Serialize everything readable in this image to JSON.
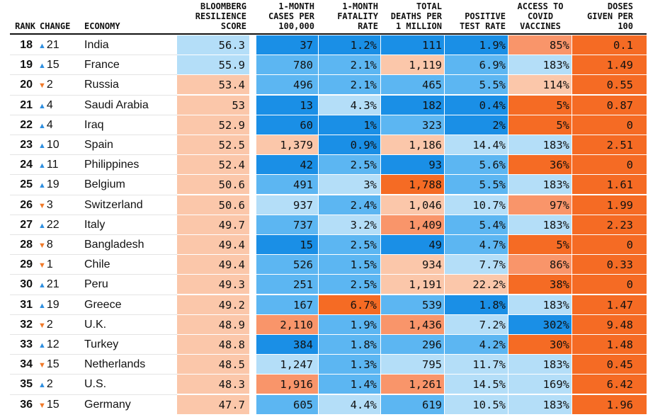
{
  "headers": {
    "rank": "RANK",
    "change": "CHANGE",
    "economy": "ECONOMY",
    "score": "BLOOMBERG\nRESILIENCE\nSCORE",
    "cases": "1-MONTH\nCASES PER\n100,000",
    "fatality": "1-MONTH\nFATALITY\nRATE",
    "deaths": "TOTAL\nDEATHS PER\n1 MILLION",
    "positive": "POSITIVE\nTEST RATE",
    "access": "ACCESS TO\nCOVID\nVACCINES",
    "doses": "DOSES\nGIVEN PER\n100"
  },
  "colors": {
    "dark_blue": "#1a8fe6",
    "mid_blue": "#5cb6f2",
    "light_blue": "#b4def8",
    "light_orange": "#fbc7aa",
    "mid_orange": "#f9956a",
    "dark_orange": "#f56b24",
    "up_arrow": "#2f8fe0",
    "down_arrow": "#f07a2a"
  },
  "rows": [
    {
      "rank": "18",
      "dir": "up",
      "change": "21",
      "economy": "India",
      "score": "56.3",
      "cases": "37",
      "fatality": "1.2%",
      "deaths": "111",
      "positive": "1.9%",
      "access": "85%",
      "doses": "0.1",
      "c": [
        "light_blue",
        "dark_blue",
        "dark_blue",
        "dark_blue",
        "dark_blue",
        "mid_orange",
        "dark_orange"
      ]
    },
    {
      "rank": "19",
      "dir": "up",
      "change": "15",
      "economy": "France",
      "score": "55.9",
      "cases": "780",
      "fatality": "2.1%",
      "deaths": "1,119",
      "positive": "6.9%",
      "access": "183%",
      "doses": "1.49",
      "c": [
        "light_blue",
        "mid_blue",
        "mid_blue",
        "light_orange",
        "mid_blue",
        "light_blue",
        "dark_orange"
      ]
    },
    {
      "rank": "20",
      "dir": "down",
      "change": "2",
      "economy": "Russia",
      "score": "53.4",
      "cases": "496",
      "fatality": "2.1%",
      "deaths": "465",
      "positive": "5.5%",
      "access": "114%",
      "doses": "0.55",
      "c": [
        "light_orange",
        "mid_blue",
        "mid_blue",
        "mid_blue",
        "mid_blue",
        "light_orange",
        "dark_orange"
      ]
    },
    {
      "rank": "21",
      "dir": "up",
      "change": "4",
      "economy": "Saudi Arabia",
      "score": "53",
      "cases": "13",
      "fatality": "4.3%",
      "deaths": "182",
      "positive": "0.4%",
      "access": "5%",
      "doses": "0.87",
      "c": [
        "light_orange",
        "dark_blue",
        "light_blue",
        "dark_blue",
        "dark_blue",
        "dark_orange",
        "dark_orange"
      ]
    },
    {
      "rank": "22",
      "dir": "up",
      "change": "4",
      "economy": "Iraq",
      "score": "52.9",
      "cases": "60",
      "fatality": "1%",
      "deaths": "323",
      "positive": "2%",
      "access": "5%",
      "doses": "0",
      "c": [
        "light_orange",
        "dark_blue",
        "dark_blue",
        "mid_blue",
        "dark_blue",
        "dark_orange",
        "dark_orange"
      ]
    },
    {
      "rank": "23",
      "dir": "up",
      "change": "10",
      "economy": "Spain",
      "score": "52.5",
      "cases": "1,379",
      "fatality": "0.9%",
      "deaths": "1,186",
      "positive": "14.4%",
      "access": "183%",
      "doses": "2.51",
      "c": [
        "light_orange",
        "light_orange",
        "dark_blue",
        "light_orange",
        "light_blue",
        "light_blue",
        "dark_orange"
      ]
    },
    {
      "rank": "24",
      "dir": "up",
      "change": "11",
      "economy": "Philippines",
      "score": "52.4",
      "cases": "42",
      "fatality": "2.5%",
      "deaths": "93",
      "positive": "5.6%",
      "access": "36%",
      "doses": "0",
      "c": [
        "light_orange",
        "dark_blue",
        "mid_blue",
        "dark_blue",
        "mid_blue",
        "dark_orange",
        "dark_orange"
      ]
    },
    {
      "rank": "25",
      "dir": "up",
      "change": "19",
      "economy": "Belgium",
      "score": "50.6",
      "cases": "491",
      "fatality": "3%",
      "deaths": "1,788",
      "positive": "5.5%",
      "access": "183%",
      "doses": "1.61",
      "c": [
        "light_orange",
        "mid_blue",
        "light_blue",
        "dark_orange",
        "mid_blue",
        "light_blue",
        "dark_orange"
      ]
    },
    {
      "rank": "26",
      "dir": "down",
      "change": "3",
      "economy": "Switzerland",
      "score": "50.6",
      "cases": "937",
      "fatality": "2.4%",
      "deaths": "1,046",
      "positive": "10.7%",
      "access": "97%",
      "doses": "1.99",
      "c": [
        "light_orange",
        "light_blue",
        "mid_blue",
        "light_orange",
        "light_blue",
        "mid_orange",
        "dark_orange"
      ]
    },
    {
      "rank": "27",
      "dir": "up",
      "change": "22",
      "economy": "Italy",
      "score": "49.7",
      "cases": "737",
      "fatality": "3.2%",
      "deaths": "1,409",
      "positive": "5.4%",
      "access": "183%",
      "doses": "2.23",
      "c": [
        "light_orange",
        "mid_blue",
        "light_blue",
        "mid_orange",
        "mid_blue",
        "light_blue",
        "dark_orange"
      ]
    },
    {
      "rank": "28",
      "dir": "down",
      "change": "8",
      "economy": "Bangladesh",
      "score": "49.4",
      "cases": "15",
      "fatality": "2.5%",
      "deaths": "49",
      "positive": "4.7%",
      "access": "5%",
      "doses": "0",
      "c": [
        "light_orange",
        "dark_blue",
        "mid_blue",
        "dark_blue",
        "mid_blue",
        "dark_orange",
        "dark_orange"
      ]
    },
    {
      "rank": "29",
      "dir": "down",
      "change": "1",
      "economy": "Chile",
      "score": "49.4",
      "cases": "526",
      "fatality": "1.5%",
      "deaths": "934",
      "positive": "7.7%",
      "access": "86%",
      "doses": "0.33",
      "c": [
        "light_orange",
        "mid_blue",
        "mid_blue",
        "light_orange",
        "light_blue",
        "mid_orange",
        "dark_orange"
      ]
    },
    {
      "rank": "30",
      "dir": "up",
      "change": "21",
      "economy": "Peru",
      "score": "49.3",
      "cases": "251",
      "fatality": "2.5%",
      "deaths": "1,191",
      "positive": "22.2%",
      "access": "38%",
      "doses": "0",
      "c": [
        "light_orange",
        "mid_blue",
        "mid_blue",
        "light_orange",
        "light_orange",
        "dark_orange",
        "dark_orange"
      ]
    },
    {
      "rank": "31",
      "dir": "up",
      "change": "19",
      "economy": "Greece",
      "score": "49.2",
      "cases": "167",
      "fatality": "6.7%",
      "deaths": "539",
      "positive": "1.8%",
      "access": "183%",
      "doses": "1.47",
      "c": [
        "light_orange",
        "mid_blue",
        "dark_orange",
        "mid_blue",
        "dark_blue",
        "light_blue",
        "dark_orange"
      ]
    },
    {
      "rank": "32",
      "dir": "down",
      "change": "2",
      "economy": "U.K.",
      "score": "48.9",
      "cases": "2,110",
      "fatality": "1.9%",
      "deaths": "1,436",
      "positive": "7.2%",
      "access": "302%",
      "doses": "9.48",
      "c": [
        "light_orange",
        "mid_orange",
        "mid_blue",
        "mid_orange",
        "light_blue",
        "dark_blue",
        "dark_orange"
      ]
    },
    {
      "rank": "33",
      "dir": "up",
      "change": "12",
      "economy": "Turkey",
      "score": "48.8",
      "cases": "384",
      "fatality": "1.8%",
      "deaths": "296",
      "positive": "4.2%",
      "access": "30%",
      "doses": "1.48",
      "c": [
        "light_orange",
        "dark_blue",
        "mid_blue",
        "mid_blue",
        "mid_blue",
        "dark_orange",
        "dark_orange"
      ]
    },
    {
      "rank": "34",
      "dir": "down",
      "change": "15",
      "economy": "Netherlands",
      "score": "48.5",
      "cases": "1,247",
      "fatality": "1.3%",
      "deaths": "795",
      "positive": "11.7%",
      "access": "183%",
      "doses": "0.45",
      "c": [
        "light_orange",
        "light_blue",
        "mid_blue",
        "light_blue",
        "light_blue",
        "light_blue",
        "dark_orange"
      ]
    },
    {
      "rank": "35",
      "dir": "up",
      "change": "2",
      "economy": "U.S.",
      "score": "48.3",
      "cases": "1,916",
      "fatality": "1.4%",
      "deaths": "1,261",
      "positive": "14.5%",
      "access": "169%",
      "doses": "6.42",
      "c": [
        "light_orange",
        "mid_orange",
        "mid_blue",
        "mid_orange",
        "light_blue",
        "light_blue",
        "dark_orange"
      ]
    },
    {
      "rank": "36",
      "dir": "down",
      "change": "15",
      "economy": "Germany",
      "score": "47.7",
      "cases": "605",
      "fatality": "4.4%",
      "deaths": "619",
      "positive": "10.5%",
      "access": "183%",
      "doses": "1.96",
      "c": [
        "light_orange",
        "mid_blue",
        "light_blue",
        "mid_blue",
        "light_blue",
        "light_blue",
        "dark_orange"
      ]
    }
  ]
}
